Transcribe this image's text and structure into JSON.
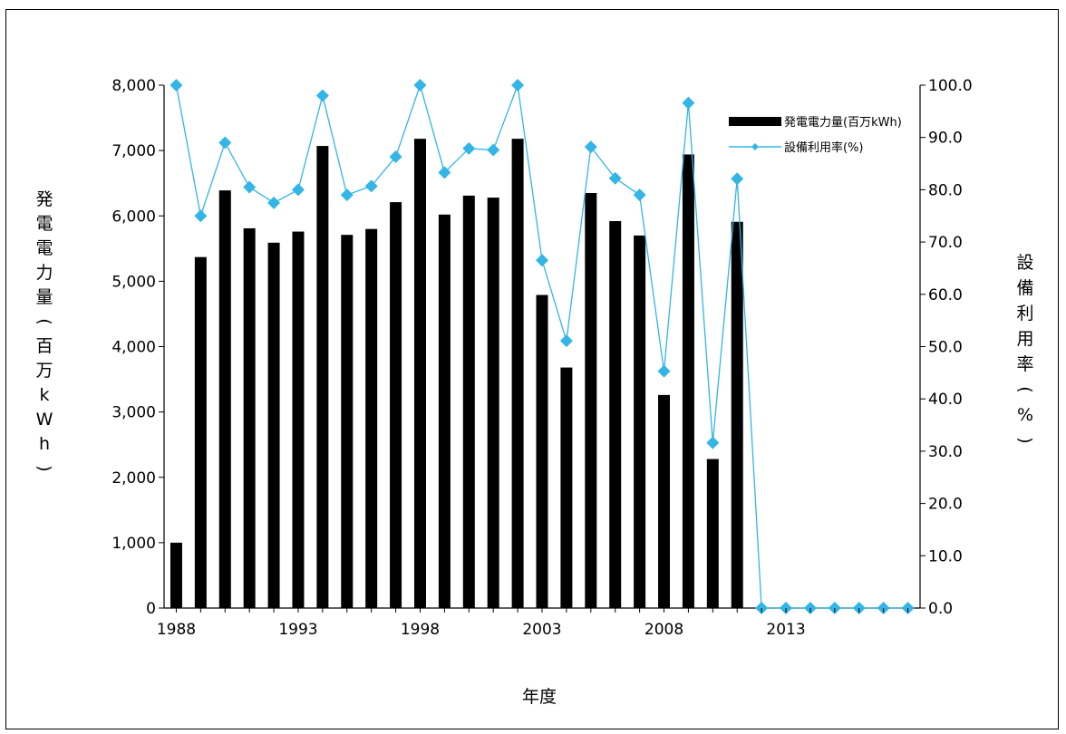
{
  "chart_data": {
    "type": "bar",
    "x": [
      1988,
      1989,
      1990,
      1991,
      1992,
      1993,
      1994,
      1995,
      1996,
      1997,
      1998,
      1999,
      2000,
      2001,
      2002,
      2003,
      2004,
      2005,
      2006,
      2007,
      2008,
      2009,
      2010,
      2011,
      2012,
      2013,
      2014,
      2015,
      2016,
      2017,
      2018
    ],
    "x_tick_labels": [
      "1988",
      "1993",
      "1998",
      "2003",
      "2008",
      "2013"
    ],
    "series": [
      {
        "name": "発電電力量(百万kWh)",
        "type": "bar",
        "axis": "left",
        "values": [
          1000,
          5370,
          6390,
          5810,
          5590,
          5760,
          7070,
          5710,
          5800,
          6210,
          7180,
          6020,
          6310,
          6280,
          7180,
          4790,
          3680,
          6350,
          5920,
          5700,
          3260,
          6940,
          2280,
          5910,
          0,
          0,
          0,
          0,
          0,
          0,
          0
        ]
      },
      {
        "name": "設備利用率(%)",
        "type": "line",
        "axis": "right",
        "values": [
          100.0,
          75.0,
          89.0,
          80.5,
          77.5,
          80.0,
          98.0,
          79.0,
          80.7,
          86.3,
          100.0,
          83.3,
          87.9,
          87.6,
          100.0,
          66.5,
          51.1,
          88.2,
          82.2,
          79.0,
          45.3,
          96.6,
          31.6,
          82.1,
          0.0,
          0.0,
          0.0,
          0.0,
          0.0,
          0.0,
          0.0
        ]
      }
    ],
    "ylabel_left": "発電電力量(百万kWh)",
    "ylabel_right": "設備利用率(%)",
    "xlabel": "年度",
    "ylim_left": [
      0,
      8000
    ],
    "ylim_right": [
      0,
      100
    ],
    "y_left_ticks": [
      "0",
      "1,000",
      "2,000",
      "3,000",
      "4,000",
      "5,000",
      "6,000",
      "7,000",
      "8,000"
    ],
    "y_right_ticks": [
      "0.0",
      "10.0",
      "20.0",
      "30.0",
      "40.0",
      "50.0",
      "60.0",
      "70.0",
      "80.0",
      "90.0",
      "100.0"
    ],
    "legend_position": "top-right",
    "grid": false,
    "colors": {
      "bar": "#000000",
      "line": "#33b5e5",
      "marker": "#33b5e5"
    }
  }
}
